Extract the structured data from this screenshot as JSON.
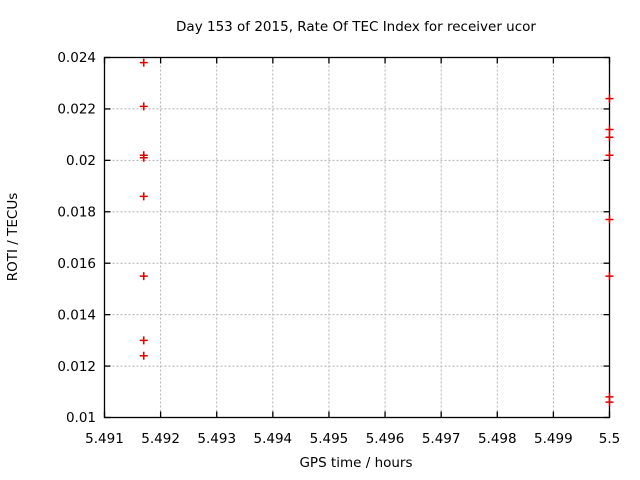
{
  "chart_data": {
    "type": "scatter",
    "title": "Day 153 of 2015, Rate Of TEC Index for receiver ucor",
    "xlabel": "GPS time / hours",
    "ylabel": "ROTI / TECUs",
    "xlim": [
      5.491,
      5.5
    ],
    "ylim": [
      0.01,
      0.024
    ],
    "grid": true,
    "legend_position": "none",
    "marker": "plus",
    "colors": {
      "point": "#dd0000",
      "grid": "#b0b0b0",
      "axis": "#000000",
      "background": "#ffffff"
    },
    "x_ticks": [
      {
        "v": 5.491,
        "label": "5.491"
      },
      {
        "v": 5.492,
        "label": "5.492"
      },
      {
        "v": 5.493,
        "label": "5.493"
      },
      {
        "v": 5.494,
        "label": "5.494"
      },
      {
        "v": 5.495,
        "label": "5.495"
      },
      {
        "v": 5.496,
        "label": "5.496"
      },
      {
        "v": 5.497,
        "label": "5.497"
      },
      {
        "v": 5.498,
        "label": "5.498"
      },
      {
        "v": 5.499,
        "label": "5.499"
      },
      {
        "v": 5.5,
        "label": "5.5"
      }
    ],
    "y_ticks": [
      {
        "v": 0.01,
        "label": "0.01"
      },
      {
        "v": 0.012,
        "label": "0.012"
      },
      {
        "v": 0.014,
        "label": "0.014"
      },
      {
        "v": 0.016,
        "label": "0.016"
      },
      {
        "v": 0.018,
        "label": "0.018"
      },
      {
        "v": 0.02,
        "label": "0.02"
      },
      {
        "v": 0.022,
        "label": "0.022"
      },
      {
        "v": 0.024,
        "label": "0.024"
      }
    ],
    "series": [
      {
        "name": "ROTI",
        "points": [
          [
            5.4917,
            0.0238
          ],
          [
            5.4917,
            0.0221
          ],
          [
            5.4917,
            0.0202
          ],
          [
            5.4917,
            0.0201
          ],
          [
            5.4917,
            0.0186
          ],
          [
            5.4917,
            0.0155
          ],
          [
            5.4917,
            0.013
          ],
          [
            5.4917,
            0.0124
          ],
          [
            5.5,
            0.0224
          ],
          [
            5.5,
            0.0212
          ],
          [
            5.5,
            0.0209
          ],
          [
            5.5,
            0.0202
          ],
          [
            5.5,
            0.0177
          ],
          [
            5.5,
            0.0155
          ],
          [
            5.5,
            0.0108
          ],
          [
            5.5,
            0.0106
          ]
        ]
      }
    ]
  }
}
